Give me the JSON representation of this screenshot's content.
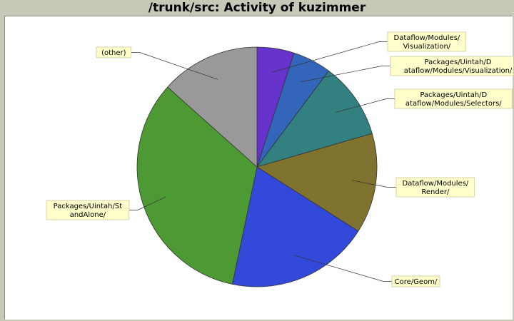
{
  "chart_data": {
    "type": "pie",
    "title": "/trunk/src: Activity of kuzimmer",
    "slices": [
      {
        "label": "Dataflow/Modules/\nVisualization/",
        "value": 5.0,
        "color": "#6633cc"
      },
      {
        "label": "Packages/Uintah/D\nataflow/Modules/Visualization/",
        "value": 5.2,
        "color": "#3366bb"
      },
      {
        "label": "Packages/Uintah/D\nataflow/Modules/Selectors/",
        "value": 10.3,
        "color": "#338080"
      },
      {
        "label": "Dataflow/Modules/\nRender/",
        "value": 13.5,
        "color": "#807330"
      },
      {
        "label": "Core/Geom/",
        "value": 19.3,
        "color": "#3349d9"
      },
      {
        "label": "Packages/Uintah/St\nandAlone/",
        "value": 33.3,
        "color": "#4d9933"
      },
      {
        "label": "(other)",
        "value": 13.4,
        "color": "#999999"
      }
    ],
    "edge_color": "#333333",
    "leader_color": "#333333",
    "label_background": "#ffffcc",
    "label_border": "#cccc99"
  }
}
